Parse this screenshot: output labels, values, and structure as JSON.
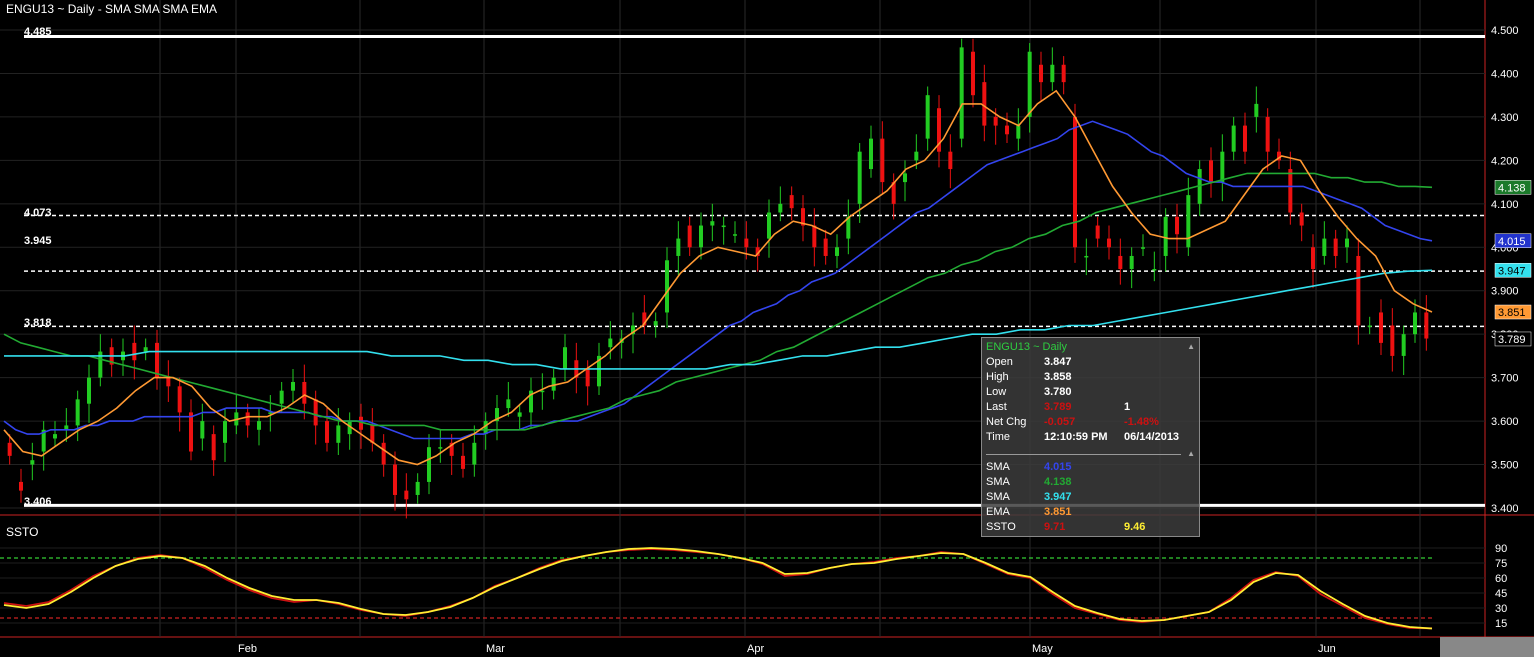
{
  "header": {
    "title": "ENGU13 ~ Daily  -  SMA SMA SMA EMA"
  },
  "lower_panel": {
    "title": "SSTO"
  },
  "levels": [
    {
      "label": "4.485",
      "value": 4.485,
      "style": "solid"
    },
    {
      "label": "4.073",
      "value": 4.073,
      "style": "dashed"
    },
    {
      "label": "3.945",
      "value": 3.945,
      "style": "dashed"
    },
    {
      "label": "3.818",
      "value": 3.818,
      "style": "dashed"
    },
    {
      "label": "3.406",
      "value": 3.406,
      "style": "solid"
    }
  ],
  "info_box": {
    "header": "ENGU13 ~ Daily",
    "rows": [
      {
        "label": "Open",
        "v1": "3.847",
        "v2": "",
        "c1": "#ffffff",
        "c2": "#ffffff"
      },
      {
        "label": "High",
        "v1": "3.858",
        "v2": "",
        "c1": "#ffffff",
        "c2": "#ffffff"
      },
      {
        "label": "Low",
        "v1": "3.780",
        "v2": "",
        "c1": "#ffffff",
        "c2": "#ffffff"
      },
      {
        "label": "Last",
        "v1": "3.789",
        "v2": "1",
        "c1": "#cc1111",
        "c2": "#ffffff"
      },
      {
        "label": "Net Chg",
        "v1": "-0.057",
        "v2": "-1.48%",
        "c1": "#cc1111",
        "c2": "#cc1111"
      },
      {
        "label": "Time",
        "v1": "12:10:59 PM",
        "v2": "06/14/2013",
        "c1": "#ffffff",
        "c2": "#ffffff"
      }
    ],
    "indicators": [
      {
        "label": "SMA",
        "v1": "4.015",
        "v2": "",
        "c1": "#3344ee",
        "c2": "#ffffff"
      },
      {
        "label": "SMA",
        "v1": "4.138",
        "v2": "",
        "c1": "#22aa33",
        "c2": "#ffffff"
      },
      {
        "label": "SMA",
        "v1": "3.947",
        "v2": "",
        "c1": "#33e0ee",
        "c2": "#ffffff"
      },
      {
        "label": "EMA",
        "v1": "3.851",
        "v2": "",
        "c1": "#ff9933",
        "c2": "#ffffff"
      },
      {
        "label": "SSTO",
        "v1": "9.71",
        "v2": "9.46",
        "c1": "#cc1111",
        "c2": "#ffee33"
      }
    ]
  },
  "chart_data": [
    {
      "type": "candlestick",
      "title": "ENGU13 ~ Daily",
      "y_ticks": [
        "4.500",
        "4.400",
        "4.300",
        "4.200",
        "4.100",
        "4.000",
        "3.900",
        "3.800",
        "3.700",
        "3.600",
        "3.500",
        "3.400"
      ],
      "ylim": [
        3.4,
        4.5
      ],
      "x_labels": [
        "Feb",
        "Mar",
        "Apr",
        "May",
        "Jun"
      ],
      "colors": {
        "up": "#22cc22",
        "down": "#ee1111",
        "sma1": "#3344ee",
        "sma2": "#22aa33",
        "sma3": "#33e0ee",
        "ema": "#ff9933"
      },
      "right_tags": [
        {
          "label": "4.138",
          "value": 4.138,
          "bg": "#1b7a2a",
          "fg": "#ffffff"
        },
        {
          "label": "4.015",
          "value": 4.015,
          "bg": "#2233cc",
          "fg": "#ffffff"
        },
        {
          "label": "3.947",
          "value": 3.947,
          "bg": "#33e0ee",
          "fg": "#000000"
        },
        {
          "label": "3.851",
          "value": 3.851,
          "bg": "#ff9933",
          "fg": "#000000"
        },
        {
          "label": "3.789",
          "value": 3.789,
          "bg": "#000000",
          "fg": "#ffffff"
        }
      ],
      "candles": [
        [
          3.55,
          3.52
        ],
        [
          3.46,
          3.44
        ],
        [
          3.5,
          3.51
        ],
        [
          3.53,
          3.58
        ],
        [
          3.56,
          3.57
        ],
        [
          3.58,
          3.59
        ],
        [
          3.59,
          3.65
        ],
        [
          3.64,
          3.7
        ],
        [
          3.7,
          3.76
        ],
        [
          3.77,
          3.73
        ],
        [
          3.74,
          3.76
        ],
        [
          3.78,
          3.74
        ],
        [
          3.76,
          3.77
        ],
        [
          3.78,
          3.7
        ],
        [
          3.7,
          3.68
        ],
        [
          3.68,
          3.62
        ],
        [
          3.62,
          3.53
        ],
        [
          3.56,
          3.6
        ],
        [
          3.57,
          3.51
        ],
        [
          3.55,
          3.6
        ],
        [
          3.59,
          3.62
        ],
        [
          3.62,
          3.59
        ],
        [
          3.58,
          3.6
        ],
        [
          3.62,
          3.62
        ],
        [
          3.64,
          3.67
        ],
        [
          3.67,
          3.69
        ],
        [
          3.69,
          3.64
        ],
        [
          3.65,
          3.59
        ],
        [
          3.6,
          3.55
        ],
        [
          3.55,
          3.59
        ],
        [
          3.57,
          3.6
        ],
        [
          3.61,
          3.58
        ],
        [
          3.59,
          3.55
        ],
        [
          3.55,
          3.5
        ],
        [
          3.5,
          3.43
        ],
        [
          3.44,
          3.42
        ],
        [
          3.43,
          3.46
        ],
        [
          3.46,
          3.54
        ],
        [
          3.54,
          3.54
        ],
        [
          3.55,
          3.52
        ],
        [
          3.52,
          3.49
        ],
        [
          3.5,
          3.55
        ],
        [
          3.57,
          3.6
        ],
        [
          3.6,
          3.63
        ],
        [
          3.63,
          3.65
        ],
        [
          3.61,
          3.62
        ],
        [
          3.62,
          3.67
        ],
        [
          3.67,
          3.67
        ],
        [
          3.67,
          3.7
        ],
        [
          3.72,
          3.77
        ],
        [
          3.74,
          3.7
        ],
        [
          3.72,
          3.68
        ],
        [
          3.68,
          3.75
        ],
        [
          3.77,
          3.79
        ],
        [
          3.78,
          3.79
        ],
        [
          3.8,
          3.82
        ],
        [
          3.85,
          3.82
        ],
        [
          3.82,
          3.83
        ],
        [
          3.85,
          3.97
        ],
        [
          3.98,
          4.02
        ],
        [
          4.05,
          4.0
        ],
        [
          4.0,
          4.05
        ],
        [
          4.05,
          4.06
        ],
        [
          4.05,
          4.05
        ],
        [
          4.03,
          4.03
        ],
        [
          4.02,
          4.0
        ],
        [
          4.0,
          3.98
        ],
        [
          4.02,
          4.08
        ],
        [
          4.08,
          4.1
        ],
        [
          4.12,
          4.09
        ],
        [
          4.09,
          4.05
        ],
        [
          4.05,
          4.0
        ],
        [
          4.02,
          3.98
        ],
        [
          3.98,
          4.0
        ],
        [
          4.02,
          4.07
        ],
        [
          4.1,
          4.22
        ],
        [
          4.18,
          4.25
        ],
        [
          4.25,
          4.15
        ],
        [
          4.15,
          4.1
        ],
        [
          4.15,
          4.17
        ],
        [
          4.2,
          4.22
        ],
        [
          4.25,
          4.35
        ],
        [
          4.32,
          4.22
        ],
        [
          4.22,
          4.18
        ],
        [
          4.25,
          4.46
        ],
        [
          4.45,
          4.35
        ],
        [
          4.38,
          4.28
        ],
        [
          4.3,
          4.28
        ],
        [
          4.28,
          4.26
        ],
        [
          4.25,
          4.28
        ],
        [
          4.3,
          4.45
        ],
        [
          4.42,
          4.38
        ],
        [
          4.38,
          4.42
        ],
        [
          4.42,
          4.38
        ],
        [
          4.3,
          4.0
        ],
        [
          3.98,
          3.98
        ],
        [
          4.05,
          4.02
        ],
        [
          4.02,
          4.0
        ],
        [
          3.98,
          3.95
        ],
        [
          3.95,
          3.98
        ],
        [
          4.0,
          4.0
        ],
        [
          3.95,
          3.95
        ],
        [
          3.98,
          4.07
        ],
        [
          4.07,
          4.03
        ],
        [
          4.0,
          4.12
        ],
        [
          4.1,
          4.18
        ],
        [
          4.2,
          4.15
        ],
        [
          4.15,
          4.22
        ],
        [
          4.22,
          4.28
        ],
        [
          4.28,
          4.22
        ],
        [
          4.3,
          4.33
        ],
        [
          4.3,
          4.22
        ],
        [
          4.22,
          4.2
        ],
        [
          4.18,
          4.08
        ],
        [
          4.08,
          4.05
        ],
        [
          4.0,
          3.95
        ],
        [
          3.98,
          4.02
        ],
        [
          4.02,
          3.98
        ],
        [
          4.0,
          4.02
        ],
        [
          3.98,
          3.82
        ],
        [
          3.82,
          3.82
        ],
        [
          3.85,
          3.78
        ],
        [
          3.82,
          3.75
        ],
        [
          3.75,
          3.8
        ],
        [
          3.8,
          3.85
        ],
        [
          3.85,
          3.79
        ]
      ],
      "series": [
        {
          "name": "SMA",
          "color": "#3344ee",
          "values": [
            3.6,
            3.58,
            3.57,
            3.57,
            3.58,
            3.58,
            3.58,
            3.59,
            3.59,
            3.6,
            3.6,
            3.6,
            3.61,
            3.61,
            3.61,
            3.61,
            3.61,
            3.62,
            3.62,
            3.63,
            3.63,
            3.63,
            3.63,
            3.62,
            3.62,
            3.62,
            3.62,
            3.61,
            3.61,
            3.6,
            3.6,
            3.6,
            3.59,
            3.58,
            3.57,
            3.56,
            3.56,
            3.56,
            3.56,
            3.56,
            3.57,
            3.57,
            3.58,
            3.58,
            3.58,
            3.59,
            3.59,
            3.6,
            3.6,
            3.6,
            3.61,
            3.62,
            3.63,
            3.64,
            3.66,
            3.68,
            3.7,
            3.72,
            3.74,
            3.76,
            3.78,
            3.8,
            3.82,
            3.83,
            3.85,
            3.86,
            3.87,
            3.89,
            3.9,
            3.92,
            3.93,
            3.94,
            3.96,
            3.98,
            4.0,
            4.02,
            4.04,
            4.06,
            4.08,
            4.09,
            4.11,
            4.13,
            4.15,
            4.17,
            4.19,
            4.2,
            4.21,
            4.22,
            4.23,
            4.24,
            4.25,
            4.27,
            4.28,
            4.29,
            4.28,
            4.27,
            4.26,
            4.24,
            4.22,
            4.21,
            4.19,
            4.17,
            4.16,
            4.15,
            4.15,
            4.14,
            4.14,
            4.14,
            4.14,
            4.14,
            4.14,
            4.14,
            4.13,
            4.12,
            4.11,
            4.1,
            4.09,
            4.07,
            4.05,
            4.04,
            4.03,
            4.02,
            4.015
          ]
        },
        {
          "name": "SMA",
          "color": "#22aa33",
          "values": [
            3.8,
            3.78,
            3.77,
            3.76,
            3.75,
            3.75,
            3.74,
            3.73,
            3.72,
            3.71,
            3.7,
            3.69,
            3.68,
            3.67,
            3.66,
            3.65,
            3.64,
            3.63,
            3.62,
            3.61,
            3.6,
            3.6,
            3.59,
            3.59,
            3.59,
            3.59,
            3.58,
            3.58,
            3.58,
            3.58,
            3.58,
            3.58,
            3.59,
            3.6,
            3.61,
            3.62,
            3.63,
            3.65,
            3.66,
            3.67,
            3.69,
            3.7,
            3.71,
            3.72,
            3.73,
            3.74,
            3.76,
            3.77,
            3.79,
            3.81,
            3.83,
            3.85,
            3.87,
            3.89,
            3.91,
            3.93,
            3.94,
            3.96,
            3.97,
            3.99,
            4.0,
            4.02,
            4.03,
            4.05,
            4.06,
            4.08,
            4.09,
            4.1,
            4.11,
            4.12,
            4.13,
            4.14,
            4.15,
            4.16,
            4.17,
            4.17,
            4.17,
            4.17,
            4.17,
            4.16,
            4.16,
            4.15,
            4.15,
            4.14,
            4.14,
            4.138
          ]
        },
        {
          "name": "SMA",
          "color": "#33e0ee",
          "values": [
            3.75,
            3.75,
            3.75,
            3.75,
            3.75,
            3.75,
            3.76,
            3.76,
            3.76,
            3.76,
            3.76,
            3.76,
            3.76,
            3.76,
            3.76,
            3.76,
            3.75,
            3.75,
            3.75,
            3.74,
            3.74,
            3.73,
            3.73,
            3.72,
            3.72,
            3.72,
            3.72,
            3.72,
            3.72,
            3.72,
            3.73,
            3.73,
            3.74,
            3.75,
            3.75,
            3.76,
            3.77,
            3.77,
            3.78,
            3.79,
            3.8,
            3.8,
            3.81,
            3.81,
            3.82,
            3.82,
            3.83,
            3.84,
            3.85,
            3.86,
            3.87,
            3.88,
            3.89,
            3.9,
            3.91,
            3.92,
            3.93,
            3.94,
            3.945,
            3.947
          ]
        },
        {
          "name": "EMA",
          "color": "#ff9933",
          "values": [
            3.58,
            3.53,
            3.52,
            3.55,
            3.58,
            3.6,
            3.63,
            3.67,
            3.7,
            3.7,
            3.68,
            3.63,
            3.6,
            3.61,
            3.61,
            3.63,
            3.66,
            3.64,
            3.6,
            3.57,
            3.54,
            3.51,
            3.5,
            3.52,
            3.55,
            3.57,
            3.6,
            3.62,
            3.66,
            3.68,
            3.69,
            3.72,
            3.75,
            3.79,
            3.82,
            3.88,
            3.94,
            3.98,
            4.0,
            3.99,
            3.98,
            4.03,
            4.06,
            4.05,
            4.03,
            4.07,
            4.1,
            4.13,
            4.18,
            4.2,
            4.25,
            4.33,
            4.33,
            4.3,
            4.28,
            4.33,
            4.36,
            4.3,
            4.22,
            4.14,
            4.08,
            4.03,
            4.02,
            4.02,
            4.04,
            4.06,
            4.12,
            4.18,
            4.21,
            4.2,
            4.13,
            4.07,
            4.02,
            3.98,
            3.9,
            3.87,
            3.851
          ]
        }
      ]
    },
    {
      "type": "line",
      "title": "SSTO",
      "y_ticks": [
        "90",
        "75",
        "60",
        "45",
        "30",
        "15"
      ],
      "ylim": [
        0,
        100
      ],
      "reference_lines": [
        80,
        20
      ],
      "series": [
        {
          "name": "SSTO",
          "color": "#cc1111",
          "values": [
            35,
            32,
            36,
            48,
            62,
            72,
            80,
            83,
            80,
            70,
            58,
            48,
            40,
            36,
            38,
            34,
            28,
            24,
            22,
            26,
            32,
            40,
            52,
            60,
            70,
            78,
            82,
            86,
            88,
            89,
            88,
            86,
            84,
            80,
            74,
            62,
            64,
            70,
            74,
            76,
            80,
            82,
            86,
            84,
            74,
            64,
            60,
            44,
            30,
            24,
            18,
            16,
            18,
            22,
            26,
            40,
            58,
            66,
            62,
            44,
            32,
            20,
            14,
            10,
            9.71
          ]
        },
        {
          "name": "SSTO",
          "color": "#ffee33",
          "values": [
            33,
            30,
            34,
            46,
            60,
            72,
            79,
            82,
            80,
            72,
            60,
            50,
            42,
            38,
            38,
            35,
            29,
            24,
            23,
            26,
            31,
            40,
            51,
            60,
            69,
            77,
            82,
            86,
            89,
            90,
            89,
            87,
            84,
            80,
            75,
            64,
            65,
            70,
            74,
            75,
            79,
            82,
            85,
            84,
            75,
            65,
            61,
            46,
            32,
            25,
            19,
            17,
            18,
            22,
            26,
            38,
            56,
            65,
            63,
            47,
            34,
            22,
            15,
            11,
            9.46
          ]
        }
      ]
    }
  ]
}
